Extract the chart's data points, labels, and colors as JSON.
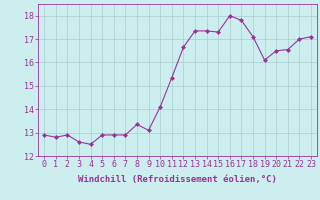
{
  "x": [
    0,
    1,
    2,
    3,
    4,
    5,
    6,
    7,
    8,
    9,
    10,
    11,
    12,
    13,
    14,
    15,
    16,
    17,
    18,
    19,
    20,
    21,
    22,
    23
  ],
  "y": [
    12.9,
    12.8,
    12.9,
    12.6,
    12.5,
    12.9,
    12.9,
    12.9,
    13.35,
    13.1,
    14.1,
    15.35,
    16.65,
    17.35,
    17.35,
    17.3,
    18.0,
    17.8,
    17.1,
    16.1,
    16.5,
    16.55,
    17.0,
    17.1
  ],
  "line_color": "#993399",
  "marker_color": "#993399",
  "bg_color": "#cceeee",
  "grid_color": "#aacccc",
  "xlabel": "Windchill (Refroidissement éolien,°C)",
  "xlim": [
    -0.5,
    23.5
  ],
  "ylim": [
    12,
    18.5
  ],
  "yticks": [
    12,
    13,
    14,
    15,
    16,
    17,
    18
  ],
  "xticks": [
    0,
    1,
    2,
    3,
    4,
    5,
    6,
    7,
    8,
    9,
    10,
    11,
    12,
    13,
    14,
    15,
    16,
    17,
    18,
    19,
    20,
    21,
    22,
    23
  ],
  "xlabel_color": "#993399",
  "tick_color": "#993399",
  "spine_color": "#993399",
  "font_size_label": 6.5,
  "font_size_tick": 6.0
}
